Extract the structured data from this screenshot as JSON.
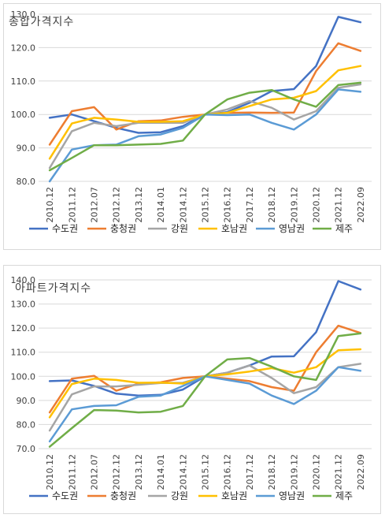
{
  "chart_data": [
    {
      "type": "line",
      "title": "종합가격지수",
      "xlabel": "",
      "ylabel": "",
      "ylim": [
        80,
        130
      ],
      "yticks": [
        "80.0",
        "90.0",
        "100.0",
        "110.0",
        "120.0",
        "130.0"
      ],
      "categories": [
        "2010.12",
        "2011.12",
        "2012.07",
        "2012.12",
        "2013.12",
        "2014.01",
        "2014.12",
        "2015.12",
        "2016.12",
        "2017.12",
        "2018.12",
        "2019.12",
        "2020.12",
        "2021.12",
        "2022.09"
      ],
      "grid": true,
      "legend": "bottom",
      "series": [
        {
          "name": "수도권",
          "color": "#4472c4",
          "values": [
            99.0,
            100.0,
            98.0,
            96.0,
            94.5,
            94.7,
            96.5,
            100.0,
            100.7,
            103.5,
            107.0,
            107.6,
            114.5,
            129.2,
            127.6
          ]
        },
        {
          "name": "충청권",
          "color": "#ed7d31",
          "values": [
            91.0,
            101.0,
            102.2,
            95.5,
            98.0,
            98.2,
            99.3,
            100.0,
            100.5,
            100.6,
            100.5,
            100.6,
            113.0,
            121.3,
            119.0
          ]
        },
        {
          "name": "강원",
          "color": "#a5a5a5",
          "values": [
            84.0,
            95.0,
            97.5,
            96.5,
            97.5,
            97.5,
            97.5,
            100.0,
            101.5,
            104.0,
            102.0,
            98.5,
            101.0,
            108.0,
            109.0
          ]
        },
        {
          "name": "호남권",
          "color": "#ffc000",
          "values": [
            86.8,
            97.3,
            99.0,
            98.5,
            97.8,
            97.8,
            98.0,
            100.0,
            100.5,
            102.5,
            104.5,
            105.0,
            107.0,
            113.2,
            114.5
          ]
        },
        {
          "name": "영남권",
          "color": "#5b9bd5",
          "values": [
            80.0,
            89.5,
            90.8,
            91.0,
            93.5,
            94.0,
            96.0,
            100.0,
            99.8,
            100.0,
            97.5,
            95.5,
            100.0,
            107.5,
            106.8
          ]
        },
        {
          "name": "제주",
          "color": "#70ad47",
          "values": [
            83.3,
            87.0,
            90.8,
            90.8,
            91.0,
            91.2,
            92.2,
            100.0,
            104.5,
            106.5,
            107.3,
            104.5,
            102.3,
            108.8,
            109.5
          ]
        }
      ]
    },
    {
      "type": "line",
      "title": "아파트가격지수",
      "xlabel": "",
      "ylabel": "",
      "ylim": [
        70,
        140
      ],
      "yticks": [
        "70.0",
        "80.0",
        "90.0",
        "100.0",
        "110.0",
        "120.0",
        "130.0",
        "140.0"
      ],
      "categories": [
        "2010.12",
        "2011.12",
        "2012.07",
        "2012.12",
        "2013.12",
        "2014.01",
        "2014.12",
        "2015.12",
        "2016.12",
        "2017.12",
        "2018.12",
        "2019.12",
        "2020.12",
        "2021.12",
        "2022.09"
      ],
      "grid": true,
      "legend": "bottom",
      "series": [
        {
          "name": "수도권",
          "color": "#4472c4",
          "values": [
            98.0,
            98.3,
            96.0,
            92.8,
            92.0,
            92.3,
            94.5,
            100.0,
            101.5,
            104.5,
            108.2,
            108.3,
            118.3,
            139.5,
            136.0
          ]
        },
        {
          "name": "충청권",
          "color": "#ed7d31",
          "values": [
            85.0,
            99.0,
            100.2,
            94.0,
            97.0,
            97.5,
            99.3,
            100.0,
            99.0,
            98.0,
            95.5,
            94.0,
            110.0,
            121.0,
            118.0
          ]
        },
        {
          "name": "강원",
          "color": "#a5a5a5",
          "values": [
            77.5,
            92.5,
            95.8,
            95.8,
            96.5,
            97.2,
            97.3,
            100.0,
            101.5,
            104.5,
            99.3,
            93.0,
            95.5,
            103.8,
            105.2
          ]
        },
        {
          "name": "호남권",
          "color": "#ffc000",
          "values": [
            83.0,
            96.8,
            99.0,
            98.5,
            97.3,
            97.4,
            97.0,
            100.0,
            100.8,
            102.0,
            103.4,
            101.5,
            103.8,
            110.8,
            111.2
          ]
        },
        {
          "name": "영남권",
          "color": "#5b9bd5",
          "values": [
            73.0,
            86.3,
            87.7,
            88.0,
            91.5,
            92.0,
            96.0,
            100.0,
            98.5,
            97.0,
            92.0,
            88.5,
            94.0,
            103.8,
            102.3
          ]
        },
        {
          "name": "제주",
          "color": "#70ad47",
          "values": [
            70.8,
            78.5,
            86.0,
            85.8,
            85.0,
            85.3,
            87.7,
            100.0,
            107.0,
            107.6,
            104.0,
            100.0,
            98.5,
            116.7,
            117.8
          ]
        }
      ]
    }
  ]
}
